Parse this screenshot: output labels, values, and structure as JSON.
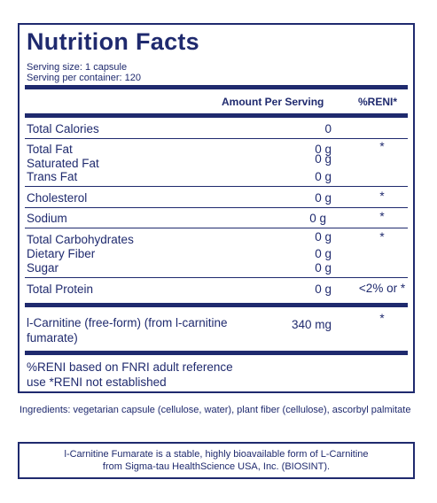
{
  "title": "Nutrition Facts",
  "serving_size": "Serving size:  1 capsule",
  "servings_per_container": "Serving per container:  120",
  "headers": {
    "amount": "Amount Per Serving",
    "reni": "%RENI*"
  },
  "rows": [
    {
      "label": "Total Calories",
      "amount": "0",
      "reni": ""
    },
    {
      "label": "Total Fat",
      "amount": "0 g",
      "reni": "*"
    },
    {
      "label": "Saturated Fat",
      "amount": "0 g",
      "reni": ""
    },
    {
      "label": "Trans Fat",
      "amount": "0 g",
      "reni": ""
    },
    {
      "label": "Cholesterol",
      "amount": "0 g",
      "reni": "*"
    },
    {
      "label": "Sodium",
      "amount": "0 g",
      "reni": "*"
    },
    {
      "label": "Total Carbohydrates",
      "amount": "0 g",
      "reni": "*"
    },
    {
      "label": "Dietary Fiber",
      "amount": "0 g",
      "reni": ""
    },
    {
      "label": "Sugar",
      "amount": "0 g",
      "reni": ""
    },
    {
      "label": "Total Protein",
      "amount": "0 g",
      "reni": "<2% or *"
    },
    {
      "label_line1": "l-Carnitine (free-form) (from l-carnitine",
      "label_line2": "fumarate)",
      "amount": "340 mg",
      "reni": "*"
    }
  ],
  "footnote_line1": "%RENI based on FNRI adult reference",
  "footnote_line2": "use *RENI not established",
  "ingredients": "Ingredients: vegetarian capsule (cellulose, water), plant fiber (cellulose), ascorbyl palmitate",
  "note_line1": "l-Carnitine Fumarate is a stable, highly bioavailable form of L-Carnitine",
  "note_line2": "from Sigma-tau HealthScience USA, Inc. (BIOSINT)."
}
